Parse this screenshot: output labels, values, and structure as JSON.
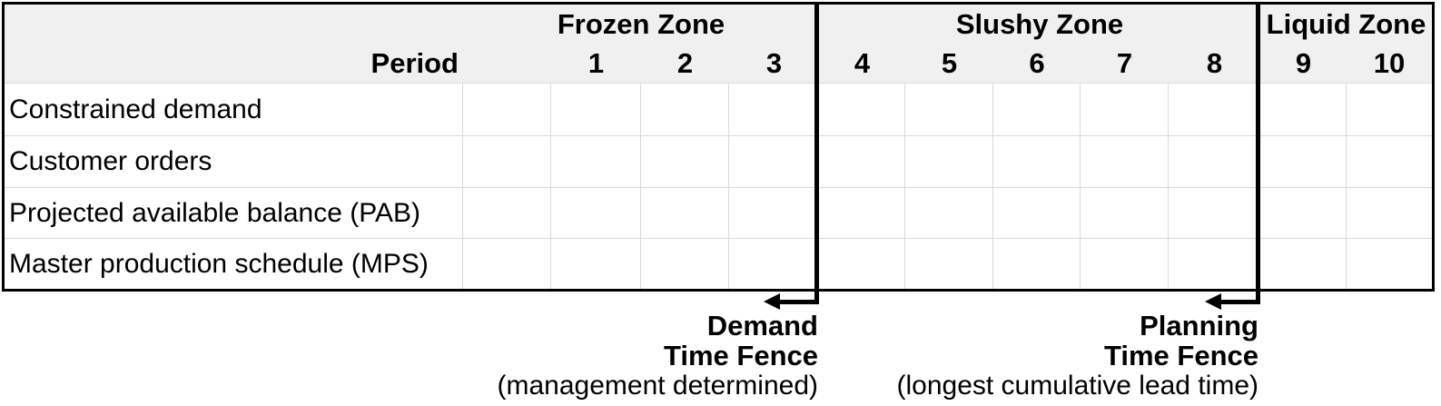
{
  "table": {
    "period_header": "Period",
    "zones": [
      {
        "id": "frozen",
        "label": "Frozen Zone",
        "periods": [
          "1",
          "2",
          "3"
        ]
      },
      {
        "id": "slushy",
        "label": "Slushy Zone",
        "periods": [
          "4",
          "5",
          "6",
          "7",
          "8"
        ]
      },
      {
        "id": "liquid",
        "label": "Liquid Zone",
        "periods": [
          "9",
          "10"
        ]
      }
    ],
    "periods": [
      "1",
      "2",
      "3",
      "4",
      "5",
      "6",
      "7",
      "8",
      "9",
      "10"
    ],
    "rows": [
      {
        "label": "Constrained demand",
        "values": [
          "",
          "",
          "",
          "",
          "",
          "",
          "",
          "",
          "",
          ""
        ]
      },
      {
        "label": "Customer orders",
        "values": [
          "",
          "",
          "",
          "",
          "",
          "",
          "",
          "",
          "",
          ""
        ]
      },
      {
        "label": "Projected available balance (PAB)",
        "values": [
          "",
          "",
          "",
          "",
          "",
          "",
          "",
          "",
          "",
          ""
        ]
      },
      {
        "label": "Master production schedule (MPS)",
        "values": [
          "",
          "",
          "",
          "",
          "",
          "",
          "",
          "",
          "",
          ""
        ]
      }
    ]
  },
  "annotations": {
    "demand_fence": {
      "after_period": "3",
      "line1": "Demand",
      "line2": "Time Fence",
      "line3": "(management determined)"
    },
    "planning_fence": {
      "after_period": "8",
      "line1": "Planning",
      "line2": "Time Fence",
      "line3": "(longest cumulative lead time)"
    }
  },
  "colors": {
    "header_bg": "#f0f0f0",
    "grid_line": "#d9d9d9",
    "border": "#000000",
    "text": "#000000"
  }
}
